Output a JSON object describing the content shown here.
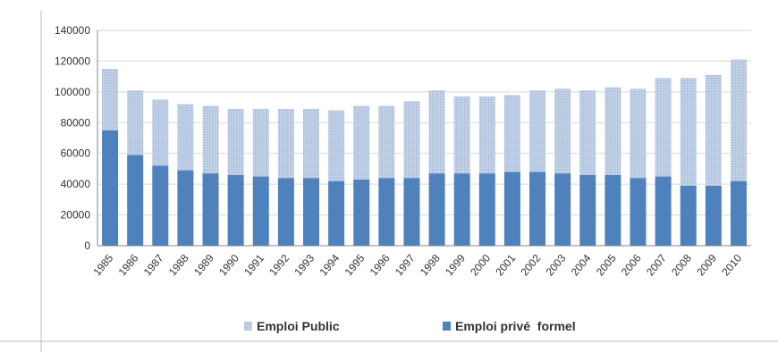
{
  "chart_data": {
    "type": "bar",
    "stacked": true,
    "title": "",
    "xlabel": "",
    "ylabel": "",
    "ylim": [
      0,
      140000
    ],
    "yticks": [
      0,
      20000,
      40000,
      60000,
      80000,
      100000,
      120000,
      140000
    ],
    "ytick_labels": [
      "0",
      "20000",
      "40000",
      "60000",
      "80000",
      "100000",
      "120000",
      "140000"
    ],
    "grid": true,
    "legend_position": "bottom",
    "categories": [
      "1985",
      "1986",
      "1987",
      "1988",
      "1989",
      "1990",
      "1991",
      "1992",
      "1993",
      "1994",
      "1995",
      "1996",
      "1997",
      "1998",
      "1999",
      "2000",
      "2001",
      "2002",
      "2003",
      "2004",
      "2005",
      "2006",
      "2007",
      "2008",
      "2009",
      "2010"
    ],
    "series": [
      {
        "name": "Emploi privé formel",
        "color": "#4f81bd",
        "values": [
          75000,
          59000,
          52000,
          49000,
          47000,
          46000,
          45000,
          44000,
          44000,
          42000,
          43000,
          44000,
          44000,
          47000,
          47000,
          47000,
          48000,
          48000,
          47000,
          46000,
          46000,
          44000,
          45000,
          39000,
          39000,
          42000
        ]
      },
      {
        "name": "Emploi Public",
        "color": "#b7c9e2",
        "values": [
          40000,
          42000,
          43000,
          43000,
          44000,
          43000,
          44000,
          45000,
          45000,
          46000,
          48000,
          47000,
          50000,
          54000,
          50000,
          50000,
          50000,
          53000,
          55000,
          55000,
          57000,
          58000,
          64000,
          70000,
          72000,
          79000
        ]
      }
    ],
    "legend": [
      {
        "label": "Emploi Public",
        "color": "#b7c9e2"
      },
      {
        "label": "Emploi privé  formel",
        "color": "#4f81bd"
      }
    ]
  }
}
